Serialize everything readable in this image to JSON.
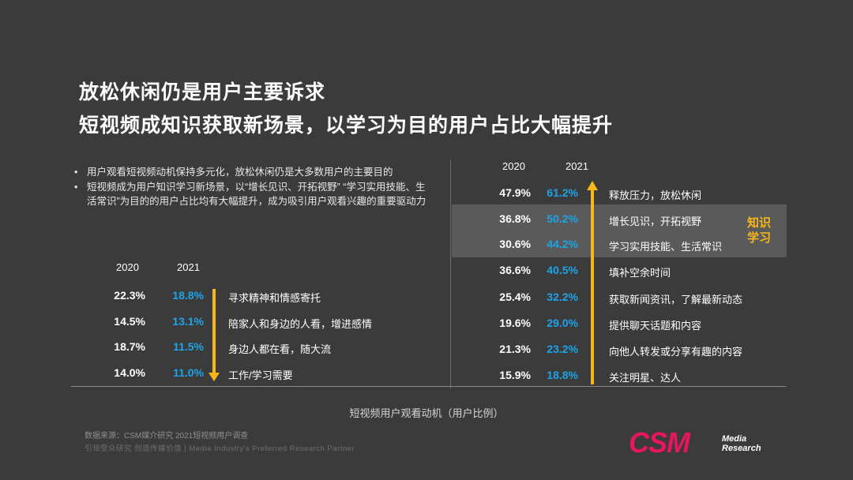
{
  "title_line1": "放松休闲仍是用户主要诉求",
  "title_line2": "短视频成知识获取新场景，以学习为目的用户占比大幅提升",
  "bullets": [
    "用户观看短视频动机保持多元化，放松休闲仍是大多数用户的主要目的",
    "短视频成为用户知识学习新场景，以“增长见识、开拓视野” “学习实用技能、生活常识”为目的的用户占比均有大幅提升，成为吸引用户观看兴趣的重要驱动力"
  ],
  "bullet_marker": "•",
  "colors": {
    "accent_2021": "#1fa3e8",
    "arrow": "#f7b719",
    "highlight": "#5a5a5a",
    "logo": "#e6165f"
  },
  "chart_data": [
    {
      "type": "table",
      "title": "短视频用户观看动机（用户比例）",
      "trend": "down",
      "years": [
        "2020",
        "2021"
      ],
      "rows": [
        {
          "label": "寻求精神和情感寄托",
          "v2020": "22.3%",
          "v2021": "18.8%"
        },
        {
          "label": "陪家人和身边的人看，增进感情",
          "v2020": "14.5%",
          "v2021": "13.1%"
        },
        {
          "label": "身边人都在看，随大流",
          "v2020": "18.7%",
          "v2021": "11.5%"
        },
        {
          "label": "工作/学习需要",
          "v2020": "14.0%",
          "v2021": "11.0%"
        }
      ]
    },
    {
      "type": "table",
      "title": "短视频用户观看动机（用户比例）",
      "trend": "up",
      "years": [
        "2020",
        "2021"
      ],
      "highlight_label": [
        "知识",
        "学习"
      ],
      "rows": [
        {
          "label": "释放压力，放松休闲",
          "v2020": "47.9%",
          "v2021": "61.2%"
        },
        {
          "label": "增长见识，开拓视野",
          "v2020": "36.8%",
          "v2021": "50.2%"
        },
        {
          "label": "学习实用技能、生活常识",
          "v2020": "30.6%",
          "v2021": "44.2%"
        },
        {
          "label": "填补空余时间",
          "v2020": "36.6%",
          "v2021": "40.5%"
        },
        {
          "label": "获取新闻资讯，了解最新动态",
          "v2020": "25.4%",
          "v2021": "32.2%"
        },
        {
          "label": "提供聊天话题和内容",
          "v2020": "19.6%",
          "v2021": "29.0%"
        },
        {
          "label": "向他人转发或分享有趣的内容",
          "v2020": "21.3%",
          "v2021": "23.2%"
        },
        {
          "label": "关注明星、达人",
          "v2020": "15.9%",
          "v2021": "18.8%"
        }
      ]
    }
  ],
  "caption": "短视频用户观看动机（用户比例）",
  "source": "数据来源：CSM媒介研究 2021短视频用户调查",
  "tagline": "引领受众研究 创造传媒价值 | Media Industry's Preferred Research Partner",
  "logo": {
    "text": "CSM",
    "sub1": "Media",
    "sub2": "Research"
  }
}
